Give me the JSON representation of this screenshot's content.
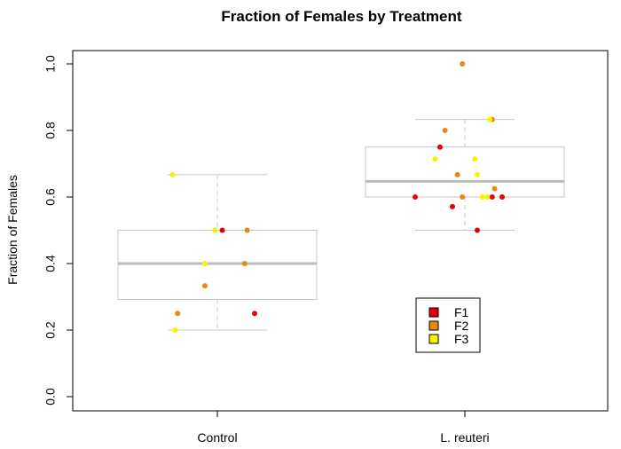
{
  "chart_data": {
    "type": "box",
    "title": "Fraction of Females by Treatment",
    "xlabel": "",
    "ylabel": "Fraction of Females",
    "categories": [
      "Control",
      "L. reuteri"
    ],
    "ylim": [
      0,
      1.0
    ],
    "yticks": [
      "0.0",
      "0.2",
      "0.4",
      "0.6",
      "0.8",
      "1.0"
    ],
    "boxes": [
      {
        "category": "Control",
        "whisker_low": 0.2,
        "q1": 0.292,
        "median": 0.4,
        "q3": 0.5,
        "whisker_high": 0.667
      },
      {
        "category": "L. reuteri",
        "whisker_low": 0.5,
        "q1": 0.6,
        "median": 0.647,
        "q3": 0.75,
        "whisker_high": 0.833
      }
    ],
    "series": [
      {
        "name": "F1",
        "color": "#e8000b",
        "points": [
          {
            "category": "Control",
            "jitter": 0.02,
            "y": 0.5
          },
          {
            "category": "Control",
            "jitter": 0.15,
            "y": 0.25
          },
          {
            "category": "L. reuteri",
            "jitter": -0.2,
            "y": 0.6
          },
          {
            "category": "L. reuteri",
            "jitter": -0.1,
            "y": 0.75
          },
          {
            "category": "L. reuteri",
            "jitter": -0.05,
            "y": 0.571
          },
          {
            "category": "L. reuteri",
            "jitter": 0.05,
            "y": 0.5
          },
          {
            "category": "L. reuteri",
            "jitter": 0.11,
            "y": 0.6
          },
          {
            "category": "L. reuteri",
            "jitter": 0.15,
            "y": 0.6
          }
        ]
      },
      {
        "name": "F2",
        "color": "#e98a0f",
        "points": [
          {
            "category": "Control",
            "jitter": -0.16,
            "y": 0.25
          },
          {
            "category": "Control",
            "jitter": -0.05,
            "y": 0.333
          },
          {
            "category": "Control",
            "jitter": 0.11,
            "y": 0.4
          },
          {
            "category": "Control",
            "jitter": 0.12,
            "y": 0.5
          },
          {
            "category": "L. reuteri",
            "jitter": -0.01,
            "y": 1.0
          },
          {
            "category": "L. reuteri",
            "jitter": -0.08,
            "y": 0.8
          },
          {
            "category": "L. reuteri",
            "jitter": -0.03,
            "y": 0.667
          },
          {
            "category": "L. reuteri",
            "jitter": -0.01,
            "y": 0.6
          },
          {
            "category": "L. reuteri",
            "jitter": 0.11,
            "y": 0.833
          },
          {
            "category": "L. reuteri",
            "jitter": 0.12,
            "y": 0.625
          }
        ]
      },
      {
        "name": "F3",
        "color": "#f8f400",
        "points": [
          {
            "category": "Control",
            "jitter": -0.18,
            "y": 0.667
          },
          {
            "category": "Control",
            "jitter": -0.05,
            "y": 0.4
          },
          {
            "category": "Control",
            "jitter": -0.01,
            "y": 0.5
          },
          {
            "category": "Control",
            "jitter": -0.17,
            "y": 0.2
          },
          {
            "category": "L. reuteri",
            "jitter": -0.12,
            "y": 0.714
          },
          {
            "category": "L. reuteri",
            "jitter": 0.04,
            "y": 0.714
          },
          {
            "category": "L. reuteri",
            "jitter": 0.05,
            "y": 0.667
          },
          {
            "category": "L. reuteri",
            "jitter": 0.1,
            "y": 0.833
          },
          {
            "category": "L. reuteri",
            "jitter": 0.07,
            "y": 0.6
          },
          {
            "category": "L. reuteri",
            "jitter": 0.09,
            "y": 0.6
          }
        ]
      }
    ],
    "legend": {
      "position": "bottom-right-inside",
      "entries": [
        "F1",
        "F2",
        "F3"
      ]
    },
    "grid": false
  }
}
